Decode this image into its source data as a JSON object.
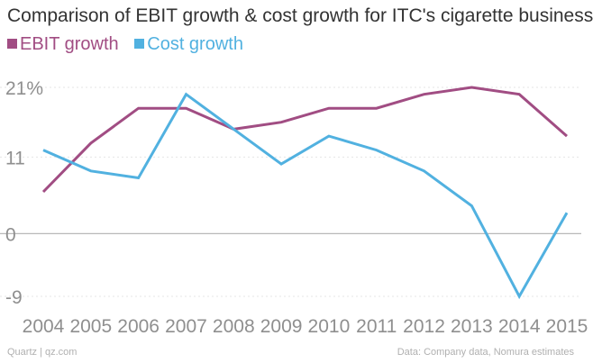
{
  "chart_data": {
    "type": "line",
    "title": "Comparison of EBIT growth & cost growth for ITC's cigarette business",
    "categories": [
      "2004",
      "2005",
      "2006",
      "2007",
      "2008",
      "2009",
      "2010",
      "2011",
      "2012",
      "2013",
      "2014",
      "2015"
    ],
    "series": [
      {
        "name": "EBIT growth",
        "color": "#a14d83",
        "values": [
          6,
          13,
          18,
          18,
          15,
          16,
          18,
          18,
          20,
          21,
          20,
          14
        ]
      },
      {
        "name": "Cost growth",
        "color": "#51b1e0",
        "values": [
          12,
          9,
          8,
          20,
          15,
          10,
          14,
          12,
          9,
          4,
          -9,
          3
        ]
      }
    ],
    "y_ticks": [
      21,
      11,
      0,
      -9
    ],
    "y_tick_labels": [
      "21%",
      "11",
      "0",
      "-9"
    ],
    "ylim": [
      -9,
      21
    ],
    "xlabel": "",
    "ylabel": "",
    "grid": true
  },
  "footer": {
    "source_left": "Quartz | qz.com",
    "source_right": "Data: Company data, Nomura estimates"
  }
}
